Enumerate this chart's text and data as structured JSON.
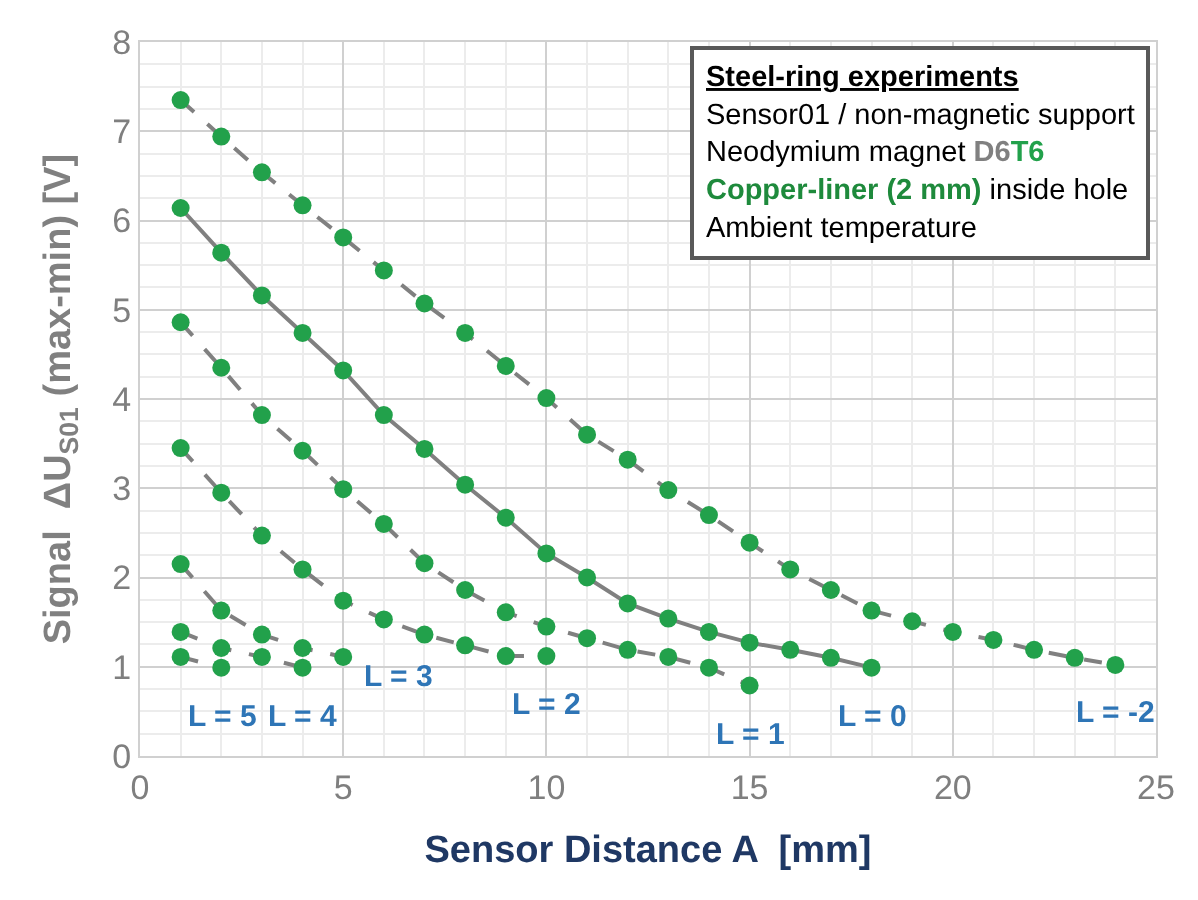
{
  "chart_data": {
    "type": "line",
    "xlabel": "Sensor Distance A  [mm]",
    "ylabel": "Signal  ΔU$_{S01}$ (max-min) [V]",
    "annotations": [
      "Steel-ring experiments",
      "Sensor01 / non-magnetic support",
      "Neodymium magnet D6T6",
      "Copper-liner (2 mm) inside hole",
      "Ambient temperature"
    ],
    "xlim": [
      0,
      25
    ],
    "xticks": [
      0,
      5,
      10,
      15,
      20,
      25
    ],
    "ylim": [
      0,
      8
    ],
    "yticks": [
      0,
      1,
      2,
      3,
      4,
      5,
      6,
      7,
      8
    ],
    "grid": true,
    "marker": "circle",
    "legend": false,
    "series": [
      {
        "name": "L = 5",
        "color": "#22a14b",
        "line_style": "dashed",
        "x": [
          1,
          2
        ],
        "values": [
          1.11,
          0.99
        ]
      },
      {
        "name": "L = 4",
        "color": "#22a14b",
        "line_style": "dashed",
        "x": [
          1,
          2,
          3,
          4
        ],
        "values": [
          1.39,
          1.21,
          1.11,
          0.99
        ]
      },
      {
        "name": "L = 3",
        "color": "#22a14b",
        "line_style": "dashed",
        "x": [
          1,
          2,
          3,
          4,
          5
        ],
        "values": [
          2.15,
          1.63,
          1.36,
          1.21,
          1.11
        ]
      },
      {
        "name": "L = 2",
        "color": "#22a14b",
        "line_style": "dashed",
        "x": [
          1,
          2,
          3,
          4,
          5,
          6,
          7,
          8,
          9,
          10
        ],
        "values": [
          3.45,
          2.95,
          2.47,
          2.09,
          1.74,
          1.53,
          1.36,
          1.24,
          1.12,
          1.12
        ]
      },
      {
        "name": "L = 1",
        "color": "#22a14b",
        "line_style": "dashed",
        "x": [
          1,
          2,
          3,
          4,
          5,
          6,
          7,
          8,
          9,
          10,
          11,
          12,
          13,
          14,
          15
        ],
        "values": [
          4.86,
          4.35,
          3.82,
          3.42,
          2.99,
          2.6,
          2.16,
          1.86,
          1.61,
          1.45,
          1.32,
          1.19,
          1.11,
          0.99,
          0.79
        ]
      },
      {
        "name": "L = 0",
        "color": "#22a14b",
        "line_style": "solid",
        "x": [
          1,
          2,
          3,
          4,
          5,
          6,
          7,
          8,
          9,
          10,
          11,
          12,
          13,
          14,
          15,
          16,
          17,
          18
        ],
        "values": [
          6.14,
          5.64,
          5.16,
          4.74,
          4.32,
          3.82,
          3.44,
          3.04,
          2.67,
          2.27,
          2.0,
          1.71,
          1.54,
          1.39,
          1.27,
          1.19,
          1.1,
          0.99
        ]
      },
      {
        "name": "L = -2",
        "color": "#22a14b",
        "line_style": "dashed",
        "x": [
          1,
          2,
          3,
          4,
          5,
          6,
          7,
          8,
          9,
          10,
          11,
          12,
          13,
          14,
          15,
          16,
          17,
          18,
          19,
          20,
          21,
          22,
          23,
          24
        ],
        "values": [
          7.35,
          6.94,
          6.54,
          6.17,
          5.81,
          5.44,
          5.07,
          4.74,
          4.37,
          4.01,
          3.6,
          3.32,
          2.98,
          2.7,
          2.39,
          2.09,
          1.86,
          1.63,
          1.51,
          1.39,
          1.3,
          1.19,
          1.1,
          1.02
        ]
      }
    ]
  }
}
